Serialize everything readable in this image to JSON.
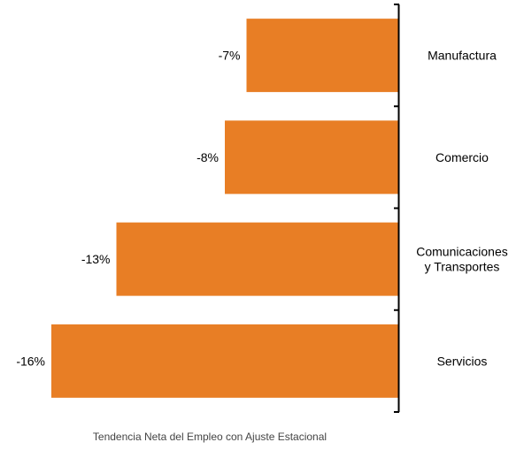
{
  "chart_data": {
    "type": "bar",
    "orientation": "horizontal",
    "categories": [
      [
        "Manufactura"
      ],
      [
        "Comercio"
      ],
      [
        "Comunicaciones",
        "y Transportes"
      ],
      [
        "Servicios"
      ]
    ],
    "values": [
      -7,
      -8,
      -13,
      -16
    ],
    "value_labels": [
      "-7%",
      "-8%",
      "-13%",
      "-16%"
    ],
    "xlim": [
      -16,
      0
    ],
    "xlabel": "Tendencia Neta del Empleo con Ajuste Estacional",
    "bar_color": "#E87E25",
    "axis_color": "#000000",
    "grid": false,
    "legend": "none",
    "category_axis_position": "right"
  }
}
